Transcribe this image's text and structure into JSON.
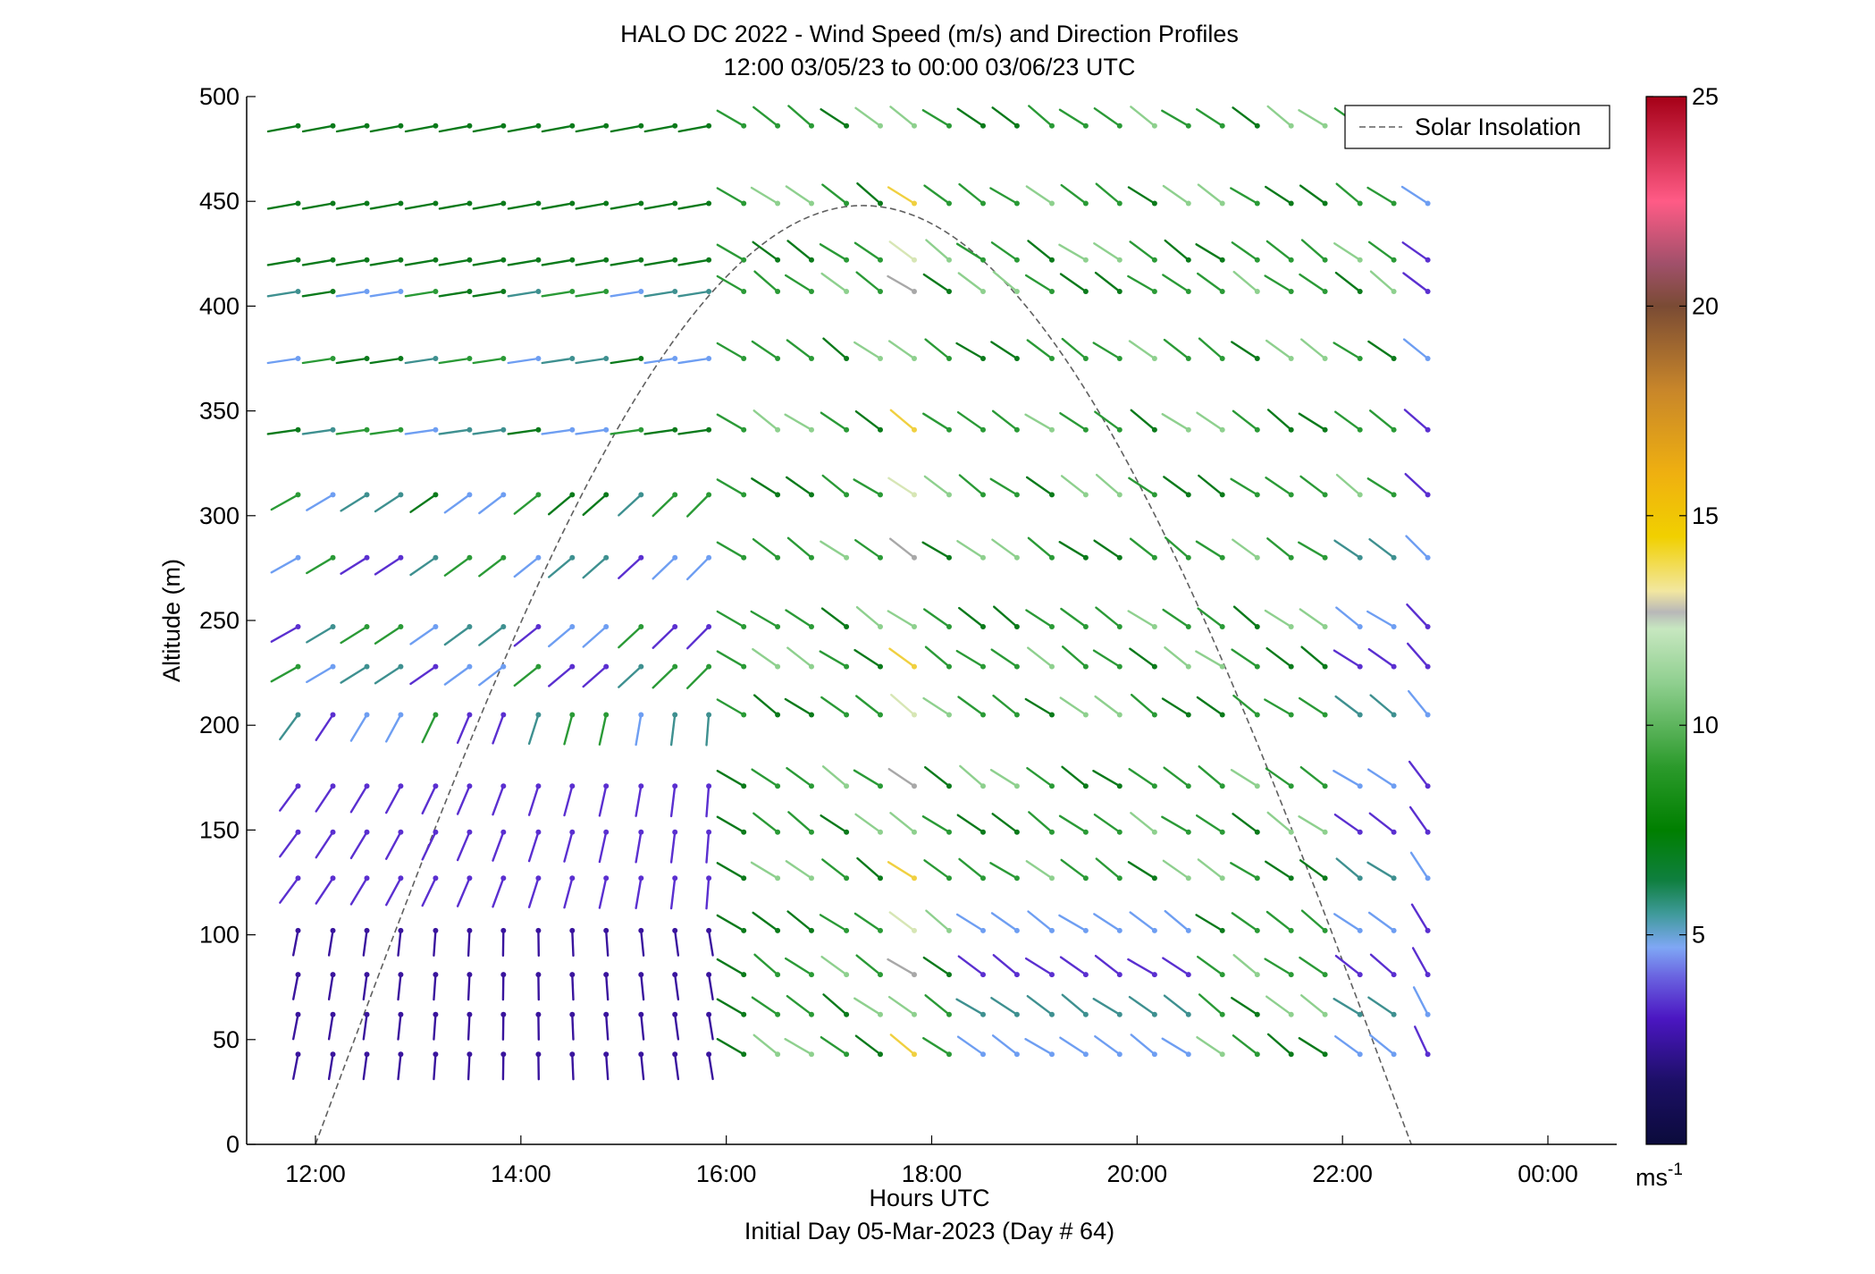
{
  "chart_data": {
    "type": "wind-barb profile",
    "title": "HALO DC 2022 - Wind Speed (m/s) and Direction Profiles",
    "subtitle": "12:00 03/05/23 to 00:00 03/06/23  UTC",
    "xlabel": "Hours UTC",
    "xlabel2": "Initial Day 05-Mar-2023 (Day # 64)",
    "ylabel": "Altitude (m)",
    "xlim": [
      11.33,
      24.67
    ],
    "ylim": [
      0,
      500
    ],
    "x_ticks": [
      12,
      14,
      16,
      18,
      20,
      22,
      24
    ],
    "x_tick_labels": [
      "12:00",
      "14:00",
      "16:00",
      "18:00",
      "20:00",
      "22:00",
      "00:00"
    ],
    "y_ticks": [
      0,
      50,
      100,
      150,
      200,
      250,
      300,
      350,
      400,
      450,
      500
    ],
    "y_tick_labels": [
      "0",
      "50",
      "100",
      "150",
      "200",
      "250",
      "300",
      "350",
      "400",
      "450",
      "500"
    ],
    "legend": {
      "label": "Solar Insolation",
      "placement": "top-right"
    },
    "colorbar": {
      "range": [
        0,
        25
      ],
      "ticks": [
        5,
        10,
        15,
        20,
        25
      ],
      "tick_labels": [
        "5",
        "10",
        "15",
        "20",
        "25"
      ],
      "unit_label": "ms",
      "unit_exponent": "-1",
      "stops": [
        {
          "v": 0,
          "c": "#0b0b3b"
        },
        {
          "v": 1.5,
          "c": "#1c0f66"
        },
        {
          "v": 3,
          "c": "#4b16c2"
        },
        {
          "v": 4,
          "c": "#6a63e0"
        },
        {
          "v": 4.7,
          "c": "#7fa7f5"
        },
        {
          "v": 5.5,
          "c": "#3f9a9a"
        },
        {
          "v": 6.3,
          "c": "#0f7f3f"
        },
        {
          "v": 7.5,
          "c": "#007f00"
        },
        {
          "v": 9,
          "c": "#2b9a2b"
        },
        {
          "v": 11,
          "c": "#8fcf8f"
        },
        {
          "v": 12.3,
          "c": "#c7e7c0"
        },
        {
          "v": 12.7,
          "c": "#b8b8b8"
        },
        {
          "v": 13.2,
          "c": "#f2e7a0"
        },
        {
          "v": 14.5,
          "c": "#f1d000"
        },
        {
          "v": 16,
          "c": "#efb010"
        },
        {
          "v": 18,
          "c": "#c8862a"
        },
        {
          "v": 20,
          "c": "#7a4b34"
        },
        {
          "v": 21,
          "c": "#a0506a"
        },
        {
          "v": 22.5,
          "c": "#ff5b86"
        },
        {
          "v": 25,
          "c": "#a50017"
        }
      ]
    },
    "solar_insolation": {
      "style": "dashed",
      "color": "#606060",
      "sunrise_hour": 12.0,
      "sunset_hour": 22.67,
      "peak_hour": 17.33,
      "peak_altitude": 448
    },
    "barb_heights": [
      43,
      62,
      81,
      102,
      127,
      149,
      171,
      205,
      228,
      247,
      280,
      310,
      341,
      375,
      407,
      422,
      449,
      486
    ],
    "colorbar_color_samples": {
      "purple_dark": "#3a159e",
      "purple": "#5a2fd0",
      "light_blue": "#6e9ef2",
      "teal": "#3e9090",
      "dark_green": "#0b7a1b",
      "green": "#2a9a36",
      "light_green": "#8ed08e",
      "pale": "#d7e6b5",
      "gray": "#a8a8a8",
      "yellow": "#f0d040"
    },
    "columns": [
      {
        "t": 11.83,
        "spd": [
          2.5,
          2.5,
          2.5,
          2.5,
          2.5,
          2.5,
          2.5,
          3.5,
          3.5,
          4.0,
          4.5,
          4.5,
          4.5,
          4.5,
          6.5,
          7.0,
          7.0,
          7.5
        ],
        "dir": [
          180,
          190,
          205,
          210,
          230,
          245,
          250,
          250,
          250,
          250,
          250,
          245,
          250,
          260,
          250,
          260,
          265,
          275
        ]
      },
      {
        "t": 12.17,
        "spd": [
          2.5,
          2.5,
          2.5,
          2.5,
          2.5,
          2.5,
          3.5,
          4.0,
          4.5,
          4.5,
          4.5,
          4.5,
          4.5,
          4.5,
          7.0,
          7.0,
          7.0,
          7.5
        ]
      },
      {
        "t": 12.5
      },
      {
        "t": 12.83
      },
      {
        "t": 13.17
      },
      {
        "t": 13.5
      },
      {
        "t": 13.83
      },
      {
        "t": 14.17
      },
      {
        "t": 14.5
      },
      {
        "t": 14.83
      },
      {
        "t": 15.17
      },
      {
        "t": 15.5
      },
      {
        "t": 15.83
      },
      {
        "t": 16.17
      },
      {
        "t": 16.5
      },
      {
        "t": 16.83
      },
      {
        "t": 17.17
      },
      {
        "t": 17.5
      },
      {
        "t": 17.83
      },
      {
        "t": 18.17
      },
      {
        "t": 18.5
      },
      {
        "t": 18.83
      },
      {
        "t": 19.17
      },
      {
        "t": 19.5
      },
      {
        "t": 19.83
      },
      {
        "t": 20.17
      },
      {
        "t": 20.5
      },
      {
        "t": 20.83
      },
      {
        "t": 21.17
      },
      {
        "t": 21.5
      },
      {
        "t": 21.83
      },
      {
        "t": 22.17
      },
      {
        "t": 22.5
      },
      {
        "t": 22.83
      }
    ]
  }
}
